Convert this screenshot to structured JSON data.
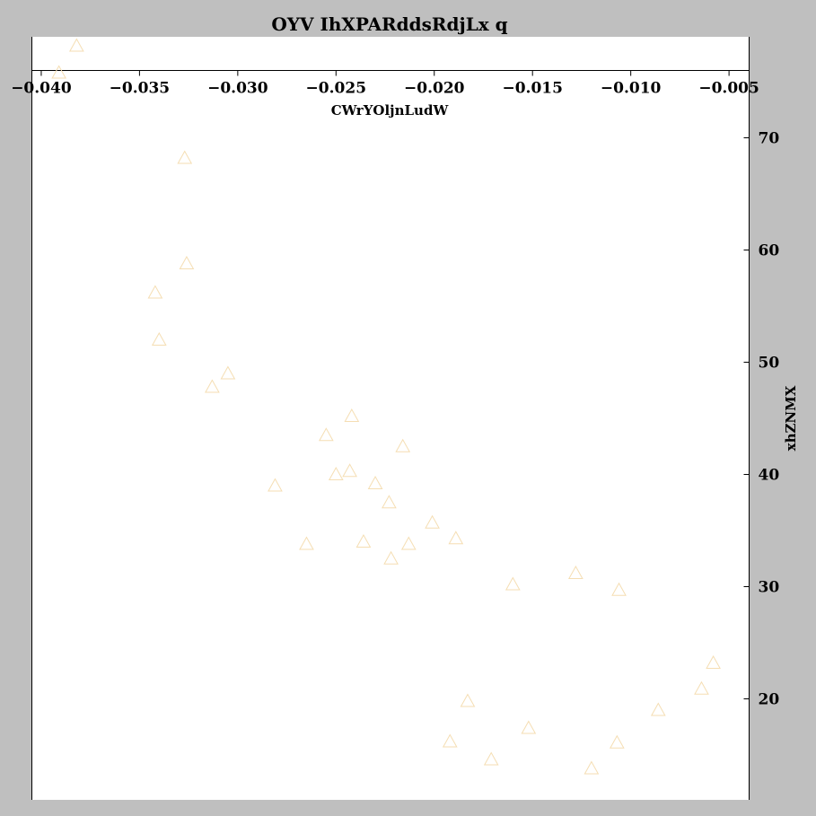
{
  "chart_data": {
    "type": "scatter",
    "title": "OYV IhXPARddsRdjLx q",
    "xlabel": "CWrYOljnLudW",
    "ylabel": "xhZNMX",
    "xlim": [
      -0.0405,
      -0.004
    ],
    "ylim": [
      11,
      79
    ],
    "xticks": [
      -0.04,
      -0.035,
      -0.03,
      -0.025,
      -0.02,
      -0.015,
      -0.01,
      -0.005
    ],
    "xtick_labels": [
      "−0.040",
      "−0.035",
      "−0.030",
      "−0.025",
      "−0.020",
      "−0.015",
      "−0.010",
      "−0.005"
    ],
    "yticks": [
      20,
      30,
      40,
      50,
      60,
      70
    ],
    "ytick_labels": [
      "20",
      "30",
      "40",
      "50",
      "60",
      "70"
    ],
    "x_axis_position": "top",
    "y_axis_position": "right",
    "marker": "triangle-hollow",
    "marker_color": "#f5deb3",
    "grid": false,
    "series": [
      {
        "x": [
          -0.0382,
          -0.0391,
          -0.0327,
          -0.0326,
          -0.0342,
          -0.034,
          -0.0305,
          -0.0313,
          -0.0281,
          -0.0265,
          -0.0255,
          -0.025,
          -0.0243,
          -0.0242,
          -0.0236,
          -0.023,
          -0.0223,
          -0.0222,
          -0.0216,
          -0.0213,
          -0.0201,
          -0.0189,
          -0.0192,
          -0.0183,
          -0.0171,
          -0.016,
          -0.0152,
          -0.0128,
          -0.012,
          -0.0106,
          -0.0107,
          -0.0086,
          -0.0064,
          -0.0058
        ],
        "y": [
          78.2,
          75.8,
          68.2,
          58.8,
          56.2,
          52.0,
          49.0,
          47.8,
          39.0,
          33.8,
          43.5,
          40.0,
          40.3,
          45.2,
          34.0,
          39.2,
          37.5,
          32.5,
          42.5,
          33.8,
          35.7,
          34.3,
          16.2,
          19.8,
          14.6,
          30.2,
          17.4,
          31.2,
          13.8,
          29.7,
          16.1,
          19.0,
          20.9,
          23.2
        ]
      }
    ]
  }
}
